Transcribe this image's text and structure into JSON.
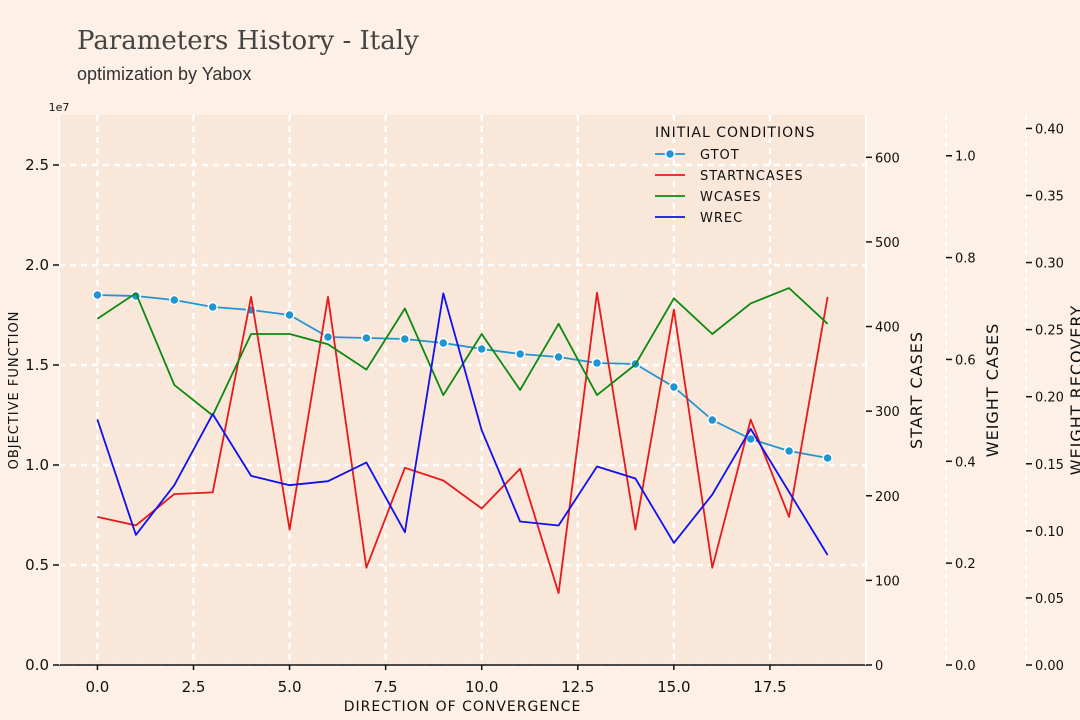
{
  "header": {
    "title": "Parameters History - Italy",
    "subtitle": "optimization by Yabox"
  },
  "colors": {
    "background": "#fdf0e6",
    "plot_background": "#f9e7da",
    "grid": "#ffffff",
    "text": "#111111"
  },
  "chart_data": {
    "type": "line",
    "xlabel": "DIRECTION OF CONVERGENCE",
    "xlim": [
      -1,
      20
    ],
    "x_ticks": [
      0,
      2.5,
      5,
      7.5,
      10,
      12.5,
      15,
      17.5
    ],
    "x_tick_labels": [
      "0.0",
      "2.5",
      "5.0",
      "7.5",
      "10.0",
      "12.5",
      "15.0",
      "17.5"
    ],
    "x": [
      0,
      1,
      2,
      3,
      4,
      5,
      6,
      7,
      8,
      9,
      10,
      11,
      12,
      13,
      14,
      15,
      16,
      17,
      18,
      19
    ],
    "grid": true,
    "legend": {
      "title": "INITIAL CONDITIONS",
      "placement": "top-right"
    },
    "axes": [
      {
        "id": "objective",
        "label": "OBJECTIVE FUNCTION",
        "side": "left",
        "scale_label": "1e7",
        "ylim": [
          0,
          27500000
        ],
        "ticks": [
          0,
          5000000,
          10000000,
          15000000,
          20000000,
          25000000
        ],
        "tick_labels": [
          "0.0",
          "0.5",
          "1.0",
          "1.5",
          "2.0",
          "2.5"
        ]
      },
      {
        "id": "start",
        "label": "START CASES",
        "side": "right",
        "ylim": [
          0,
          650
        ],
        "ticks": [
          0,
          100,
          200,
          300,
          400,
          500,
          600
        ],
        "tick_labels": [
          "0",
          "100",
          "200",
          "300",
          "400",
          "500",
          "600"
        ]
      },
      {
        "id": "wcases",
        "label": "WEIGHT CASES",
        "side": "right",
        "ylim": [
          0,
          1.08
        ],
        "ticks": [
          0,
          0.2,
          0.4,
          0.6,
          0.8,
          1.0
        ],
        "tick_labels": [
          "0.0",
          "0.2",
          "0.4",
          "0.6",
          "0.8",
          "1.0"
        ]
      },
      {
        "id": "wrec",
        "label": "WEIGHT RECOVERY",
        "side": "right",
        "ylim": [
          0,
          0.41
        ],
        "ticks": [
          0,
          0.05,
          0.1,
          0.15,
          0.2,
          0.25,
          0.3,
          0.35,
          0.4
        ],
        "tick_labels": [
          "0.00",
          "0.05",
          "0.10",
          "0.15",
          "0.20",
          "0.25",
          "0.30",
          "0.35",
          "0.40"
        ]
      }
    ],
    "series": [
      {
        "name": "GTOT",
        "axis": "objective",
        "color": "#1f95d4",
        "marker": true,
        "values": [
          18500000,
          18450000,
          18250000,
          17900000,
          17750000,
          17500000,
          16400000,
          16350000,
          16300000,
          16100000,
          15800000,
          15550000,
          15400000,
          15100000,
          15050000,
          13900000,
          12250000,
          11300000,
          10700000,
          10350000
        ]
      },
      {
        "name": "STARTNCASES",
        "axis": "start",
        "color": "#e8191b",
        "marker": false,
        "values": [
          175,
          165,
          202,
          204,
          435,
          160,
          435,
          115,
          233,
          218,
          185,
          232,
          85,
          440,
          160,
          420,
          115,
          290,
          175,
          435
        ]
      },
      {
        "name": "WCASES",
        "axis": "wcases",
        "color": "#0c8a10",
        "marker": false,
        "values": [
          0.68,
          0.73,
          0.55,
          0.49,
          0.65,
          0.65,
          0.63,
          0.58,
          0.7,
          0.53,
          0.65,
          0.54,
          0.67,
          0.53,
          0.59,
          0.72,
          0.65,
          0.71,
          0.74,
          0.67
        ]
      },
      {
        "name": "WREC",
        "axis": "wrec",
        "color": "#1010f0",
        "marker": false,
        "values": [
          0.183,
          0.097,
          0.134,
          0.187,
          0.141,
          0.134,
          0.137,
          0.151,
          0.099,
          0.277,
          0.175,
          0.107,
          0.104,
          0.148,
          0.139,
          0.091,
          0.127,
          0.176,
          0.129,
          0.082
        ]
      }
    ]
  }
}
